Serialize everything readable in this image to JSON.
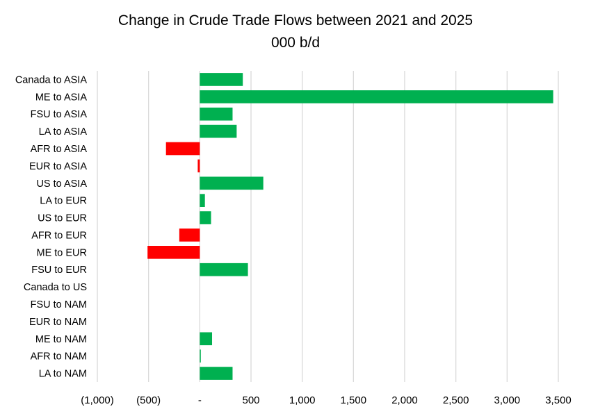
{
  "chart_data": {
    "type": "bar",
    "orientation": "horizontal",
    "title": "Change in Crude Trade Flows between 2021 and 2025",
    "subtitle": "000 b/d",
    "categories": [
      "Canada to ASIA",
      "ME to ASIA",
      "FSU to ASIA",
      "LA to ASIA",
      "AFR to ASIA",
      "EUR to ASIA",
      "US to ASIA",
      "LA to EUR",
      "US to EUR",
      "AFR to EUR",
      "ME to EUR",
      "FSU to EUR",
      "Canada to US",
      "FSU to NAM",
      "EUR to NAM",
      "ME to NAM",
      "AFR to NAM",
      "LA to NAM"
    ],
    "values": [
      420,
      3450,
      320,
      360,
      -330,
      -20,
      620,
      50,
      110,
      -200,
      -510,
      470,
      0,
      0,
      0,
      120,
      10,
      320
    ],
    "xlim": [
      -1000,
      3500
    ],
    "xticks": [
      -1000,
      -500,
      0,
      500,
      1000,
      1500,
      2000,
      2500,
      3000,
      3500
    ],
    "xtick_labels": [
      "(1,000)",
      "(500)",
      "-",
      "500",
      "1,000",
      "1,500",
      "2,000",
      "2,500",
      "3,000",
      "3,500"
    ],
    "grid": true,
    "colors": {
      "positive": "#00b050",
      "negative": "#ff0000",
      "grid": "#d9d9d9"
    }
  }
}
